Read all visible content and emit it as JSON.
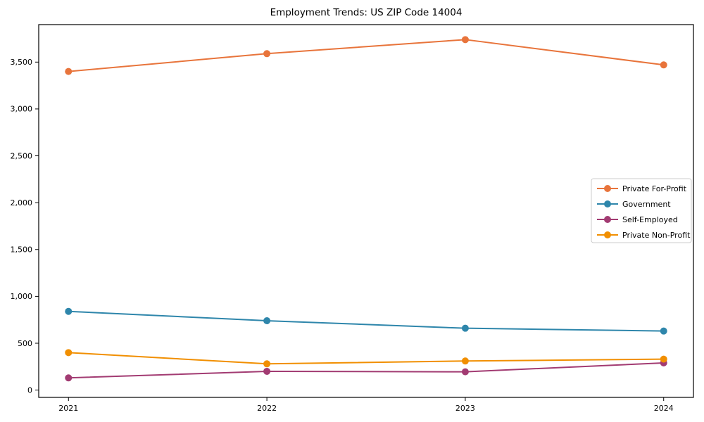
{
  "chart_data": {
    "type": "line",
    "title": "Employment Trends: US ZIP Code 14004",
    "xlabel": "",
    "ylabel": "",
    "categories": [
      "2021",
      "2022",
      "2023",
      "2024"
    ],
    "x_values": [
      2021,
      2022,
      2023,
      2024
    ],
    "series": [
      {
        "name": "Private For-Profit",
        "color": "#E8743B",
        "values": [
          3400,
          3590,
          3740,
          3470
        ]
      },
      {
        "name": "Government",
        "color": "#2E86AB",
        "values": [
          840,
          740,
          660,
          630
        ]
      },
      {
        "name": "Self-Employed",
        "color": "#A23B72",
        "values": [
          130,
          200,
          195,
          290
        ]
      },
      {
        "name": "Private Non-Profit",
        "color": "#F18F01",
        "values": [
          400,
          280,
          310,
          330
        ]
      }
    ],
    "xlim": [
      2020.85,
      2024.15
    ],
    "ylim": [
      -78,
      3900
    ],
    "yticks": [
      0,
      500,
      1000,
      1500,
      2000,
      2500,
      3000,
      3500
    ],
    "ytick_labels": [
      "0",
      "500",
      "1,000",
      "1,500",
      "2,000",
      "2,500",
      "3,000",
      "3,500"
    ],
    "grid": false,
    "legend": {
      "position": "right",
      "border_color": "#cccccc",
      "background": "#ffffff"
    },
    "axis_color": "#000000",
    "background": "#ffffff"
  }
}
